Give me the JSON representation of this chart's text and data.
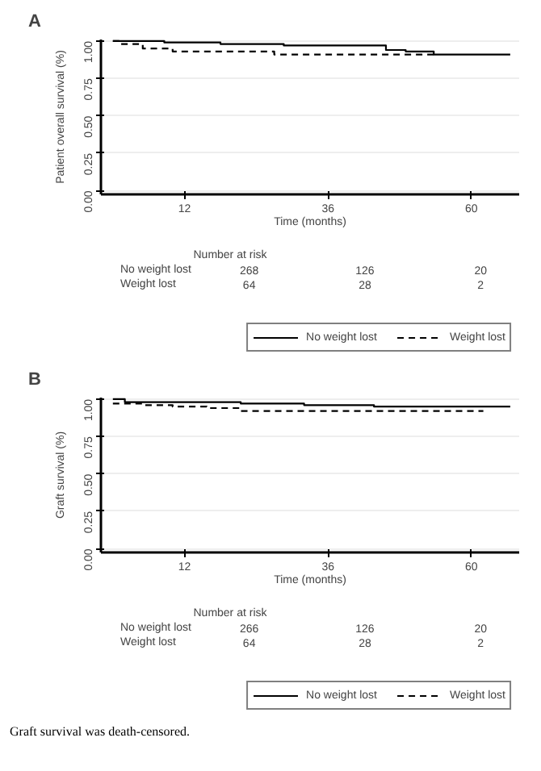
{
  "chart_data": [
    {
      "type": "step",
      "title": "A",
      "xlabel": "Time (months)",
      "ylabel": "Patient overall survival (%)",
      "xlim": [
        -2,
        68
      ],
      "ylim": [
        -0.025,
        1.01
      ],
      "xticks": [
        12,
        36,
        60
      ],
      "yticks": [
        {
          "value": 0,
          "label": "0.00"
        },
        {
          "value": 0.25,
          "label": "0.25"
        },
        {
          "value": 0.5,
          "label": "0.50"
        },
        {
          "value": 0.75,
          "label": "0.75"
        },
        {
          "value": 1,
          "label": "1.00"
        }
      ],
      "grid": "y",
      "legend": "bottom",
      "series": [
        {
          "name": "No weight lost",
          "color": "#000000",
          "line_style": "solid",
          "x": [
            0,
            8.6,
            18,
            28.6,
            45.7,
            49,
            53.7,
            66.5
          ],
          "values": [
            1.0,
            0.99,
            0.98,
            0.97,
            0.94,
            0.93,
            0.91,
            0.91
          ]
        },
        {
          "name": "Weight lost",
          "color": "#000000",
          "line_style": "dashed",
          "x": [
            0,
            1,
            5,
            10,
            27,
            53.7
          ],
          "values": [
            1.0,
            0.98,
            0.95,
            0.93,
            0.91,
            0.91
          ]
        }
      ],
      "annotations": [
        "Number at risk",
        "No weight lost",
        "268",
        "126",
        "20",
        "Weight lost",
        "64",
        "28",
        "2"
      ]
    },
    {
      "type": "step",
      "title": "B",
      "xlabel": "Time (months)",
      "ylabel": "Graft survival (%)",
      "xlim": [
        -2,
        68
      ],
      "ylim": [
        -0.025,
        1.01
      ],
      "xticks": [
        12,
        36,
        60
      ],
      "yticks": [
        {
          "value": 0,
          "label": "0.00"
        },
        {
          "value": 0.25,
          "label": "0.25"
        },
        {
          "value": 0.5,
          "label": "0.50"
        },
        {
          "value": 0.75,
          "label": "0.75"
        },
        {
          "value": 1,
          "label": "1.00"
        }
      ],
      "grid": "y",
      "legend": "bottom",
      "series": [
        {
          "name": "No weight lost",
          "color": "#000000",
          "line_style": "solid",
          "x": [
            0,
            2,
            21.4,
            32,
            43.7,
            66.5
          ],
          "values": [
            1.0,
            0.98,
            0.97,
            0.96,
            0.95,
            0.95
          ]
        },
        {
          "name": "Weight lost",
          "color": "#000000",
          "line_style": "dashed",
          "x": [
            0,
            5,
            10,
            15.7,
            21.4,
            62
          ],
          "values": [
            0.97,
            0.96,
            0.95,
            0.94,
            0.92,
            0.92
          ]
        }
      ],
      "annotations": [
        "Number at risk",
        "No weight lost",
        "266",
        "126",
        "20",
        "Weight lost",
        "64",
        "28",
        "2",
        "Graft survival was death-censored."
      ]
    }
  ]
}
